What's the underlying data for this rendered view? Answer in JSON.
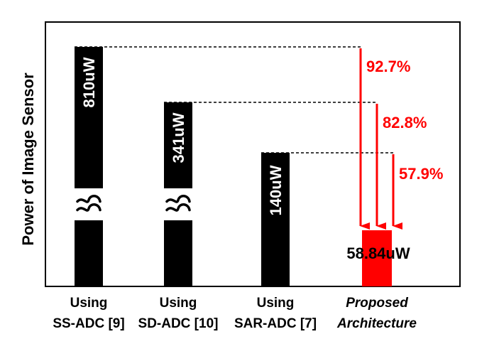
{
  "chart_data": {
    "type": "bar",
    "ylabel": "Power of Image Sensor",
    "axis_break": true,
    "grid": false,
    "categories": [
      [
        "Using",
        "SS-ADC [9]"
      ],
      [
        "Using",
        "SD-ADC [10]"
      ],
      [
        "Using",
        "SAR-ADC [7]"
      ],
      [
        "Proposed",
        "Architecture"
      ]
    ],
    "values": [
      810,
      341,
      140,
      58.84
    ],
    "value_labels": [
      "810uW",
      "341uW",
      "140uW",
      "58.84uW"
    ],
    "reductions": [
      "92.7%",
      "82.8%",
      "57.9%"
    ],
    "colors": {
      "bars": "#000000",
      "proposed": "#ff0000",
      "arrows": "#ff0000",
      "reduction_text": "#ff0000"
    }
  }
}
